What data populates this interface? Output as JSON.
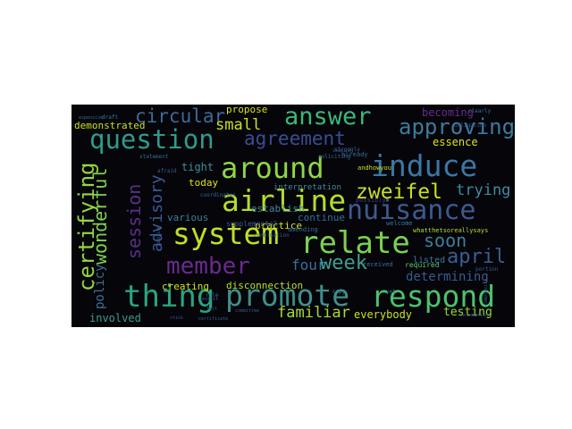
{
  "words": [
    {
      "t": "airline",
      "c": "#b5dd2b"
    },
    {
      "t": "promote",
      "c": "#3f8f8a"
    },
    {
      "t": "respond",
      "c": "#4cc26c"
    },
    {
      "t": "system",
      "c": "#c0df25"
    },
    {
      "t": "relate",
      "c": "#7bd150"
    },
    {
      "t": "nuisance",
      "c": "#3d5a8c"
    },
    {
      "t": "induce",
      "c": "#3b77a3"
    },
    {
      "t": "question",
      "c": "#2f9b8b"
    },
    {
      "t": "thing",
      "c": "#2aa57f"
    },
    {
      "t": "answer",
      "c": "#3ab87a"
    },
    {
      "t": "around",
      "c": "#8fd744"
    },
    {
      "t": "member",
      "c": "#6a2a8f"
    },
    {
      "t": "agreement",
      "c": "#3a4d90"
    },
    {
      "t": "certifying",
      "c": "#93d741"
    },
    {
      "t": "approving",
      "c": "#3f7a9c"
    },
    {
      "t": "circular",
      "c": "#3d6a9a"
    },
    {
      "t": "wonderful",
      "c": "#7fd34e"
    },
    {
      "t": "session",
      "c": "#5a2f86"
    },
    {
      "t": "advisory",
      "c": "#3a5a97"
    },
    {
      "t": "april",
      "c": "#3a5e93"
    },
    {
      "t": "zweifel",
      "c": "#c8e020"
    },
    {
      "t": "four",
      "c": "#3b6f9c"
    },
    {
      "t": "week",
      "c": "#3fa090"
    },
    {
      "t": "soon",
      "c": "#3f7f9a"
    },
    {
      "t": "trying",
      "c": "#3f8aa0"
    },
    {
      "t": "familiar",
      "c": "#a6d93a"
    },
    {
      "t": "small",
      "c": "#d0e11c"
    },
    {
      "t": "becoming",
      "c": "#6a2a8f"
    },
    {
      "t": "essence",
      "c": "#e0e31a"
    },
    {
      "t": "policy",
      "c": "#3f6f95"
    },
    {
      "t": "determining",
      "c": "#355c8c"
    },
    {
      "t": "testing",
      "c": "#9ad840"
    },
    {
      "t": "everybody",
      "c": "#c8e020"
    },
    {
      "t": "involved",
      "c": "#3a9f8e"
    },
    {
      "t": "creating",
      "c": "#d4e21a"
    },
    {
      "t": "disconnection",
      "c": "#bfe02a"
    },
    {
      "t": "demonstrated",
      "c": "#c8e020"
    },
    {
      "t": "practice",
      "c": "#d6e21b"
    },
    {
      "t": "tight",
      "c": "#3c8f98"
    },
    {
      "t": "today",
      "c": "#e2e418"
    },
    {
      "t": "various",
      "c": "#3f7f9a"
    },
    {
      "t": "continue",
      "c": "#3a6f99"
    },
    {
      "t": "propose",
      "c": "#d8e21c"
    },
    {
      "t": "establish",
      "c": "#3f8a96"
    },
    {
      "t": "listed",
      "c": "#3a7a9e"
    },
    {
      "t": "interpretation",
      "c": "#3f8f9a"
    },
    {
      "t": "supplemental",
      "c": "#3a5e90"
    },
    {
      "t": "required",
      "c": "#5dc863"
    },
    {
      "t": "whatthetsoreallysays",
      "c": "#b8de29"
    },
    {
      "t": "andhowyou",
      "c": "#c8e020"
    },
    {
      "t": "welcome",
      "c": "#3a7aa0"
    },
    {
      "t": "already",
      "c": "#3a6f99"
    },
    {
      "t": "received",
      "c": "#3a6f99"
    },
    {
      "t": "possibly",
      "c": "#4a3a8a"
    },
    {
      "t": "amending",
      "c": "#3a6f99"
    },
    {
      "t": "combination",
      "c": "#3a5a90"
    },
    {
      "t": "copy",
      "c": "#3f8a96"
    },
    {
      "t": "portion",
      "c": "#3a5e90"
    },
    {
      "t": "clearly",
      "c": "#3a6f99"
    },
    {
      "t": "obligation",
      "c": "#3a5a90"
    },
    {
      "t": "draft",
      "c": "#3f7a9c"
    },
    {
      "t": "expensive",
      "c": "#3a6a95"
    },
    {
      "t": "statement",
      "c": "#3a6a95"
    },
    {
      "t": "coordinates",
      "c": "#3a6a95"
    },
    {
      "t": "afraid",
      "c": "#3a5e90"
    },
    {
      "t": "strongly",
      "c": "#3a6a95"
    },
    {
      "t": "soliciting",
      "c": "#3a6a95"
    },
    {
      "t": "rule",
      "c": "#3a6a95"
    },
    {
      "t": "committee",
      "c": "#3a5a90"
    },
    {
      "t": "certificate",
      "c": "#3a5e90"
    },
    {
      "t": "publish",
      "c": "#3a6a95"
    },
    {
      "t": "revisit",
      "c": "#3a5e90"
    },
    {
      "t": "tell",
      "c": "#3a5a90"
    },
    {
      "t": "stick",
      "c": "#3a5a90"
    },
    {
      "t": "yet",
      "c": "#3a6a95"
    },
    {
      "t": "accomplish",
      "c": "#3a5a90"
    },
    {
      "t": "complexity",
      "c": "#3a5a90"
    },
    {
      "t": "imagine",
      "c": "#3a5a90"
    }
  ]
}
